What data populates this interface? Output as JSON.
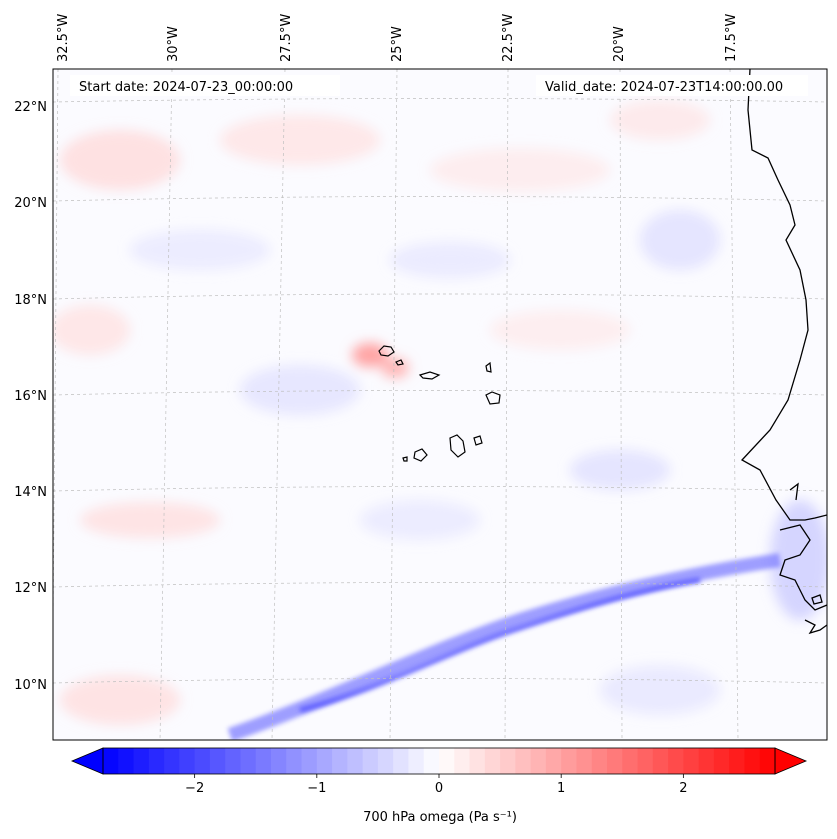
{
  "map": {
    "header": {
      "start_date": "Start date: 2024-07-23_00:00:00",
      "valid_date": "Valid_date: 2024-07-23T14:00:00.00"
    },
    "lon_labels": [
      "32.5°W",
      "30°W",
      "27.5°W",
      "25°W",
      "22.5°W",
      "20°W",
      "17.5°W"
    ],
    "lat_labels": [
      "22°N",
      "20°N",
      "18°N",
      "16°N",
      "14°N",
      "12°N",
      "10°N"
    ],
    "field": "700 hPa omega",
    "colors": {
      "negative": "#0000ff",
      "neutral": "#ffffff",
      "positive": "#ff0000",
      "coastline": "#000000",
      "gridline": "#bfbfbf"
    },
    "features": [
      "cape-verde-islands",
      "west-africa-coastline",
      "itcz-ascent-band"
    ]
  },
  "colorbar": {
    "label": "700 hPa omega (Pa s⁻¹)",
    "min": -2.75,
    "max": 2.75,
    "ticks": [
      {
        "value": -2,
        "label": "−2"
      },
      {
        "value": -1,
        "label": "−1"
      },
      {
        "value": 0,
        "label": "0"
      },
      {
        "value": 1,
        "label": "1"
      },
      {
        "value": 2,
        "label": "2"
      }
    ]
  }
}
